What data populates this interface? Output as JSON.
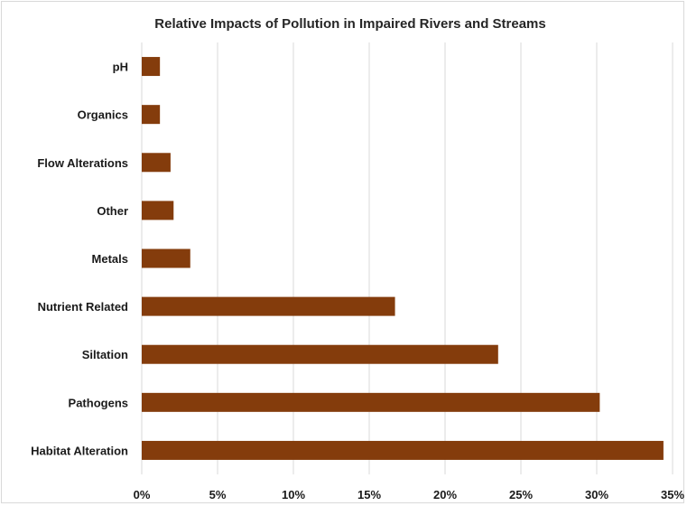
{
  "chart_data": {
    "type": "bar",
    "orientation": "horizontal",
    "title": "Relative Impacts of Pollution in Impaired Rivers and Streams",
    "xlabel": "",
    "ylabel": "",
    "categories": [
      "pH",
      "Organics",
      "Flow Alterations",
      "Other",
      "Metals",
      "Nutrient Related",
      "Siltation",
      "Pathogens",
      "Habitat Alteration"
    ],
    "values": [
      1.2,
      1.2,
      1.9,
      2.1,
      3.2,
      16.7,
      23.5,
      30.2,
      34.4
    ],
    "xlim": [
      0,
      35
    ],
    "xticks": [
      0,
      5,
      10,
      15,
      20,
      25,
      30,
      35
    ],
    "xtick_labels": [
      "0%",
      "5%",
      "10%",
      "15%",
      "20%",
      "25%",
      "30%",
      "35%"
    ],
    "value_unit": "%",
    "grid": true,
    "legend": "none",
    "bar_color": "#843c0c"
  }
}
